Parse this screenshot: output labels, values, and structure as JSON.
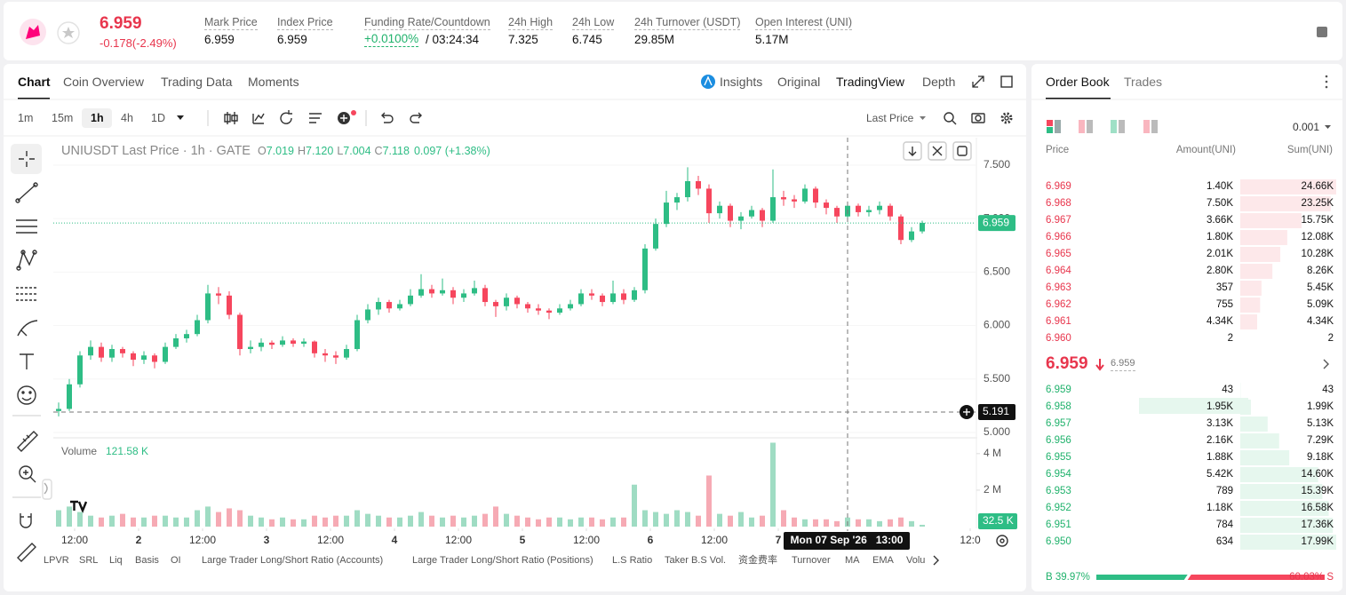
{
  "header": {
    "price": "6.959",
    "change": "-0.178(-2.49%)",
    "stats": [
      {
        "label": "Mark Price",
        "value": "6.959"
      },
      {
        "label": "Index Price",
        "value": "6.959"
      },
      {
        "label": "Funding Rate/Countdown",
        "value": "+0.0100%",
        "countdown": "/ 03:24:34"
      },
      {
        "label": "24h High",
        "value": "7.325"
      },
      {
        "label": "24h Low",
        "value": "6.745"
      },
      {
        "label": "24h Turnover (USDT)",
        "value": "29.85M"
      },
      {
        "label": "Open Interest (UNI)",
        "value": "5.17M"
      }
    ]
  },
  "chart_tabs": [
    "Chart",
    "Coin Overview",
    "Trading Data",
    "Moments"
  ],
  "view_tabs": [
    "Insights",
    "Original",
    "TradingView",
    "Depth"
  ],
  "intervals": [
    "1m",
    "15m",
    "1h",
    "4h",
    "1D"
  ],
  "price_type": "Last Price",
  "chart": {
    "type": "candlestick",
    "title": "UNIUSDT Last Price · 1h · GATE",
    "legend": [
      {
        "key": "O",
        "value": "7.019"
      },
      {
        "key": "H",
        "value": "7.120"
      },
      {
        "key": "L",
        "value": "7.004"
      },
      {
        "key": "C",
        "value": "7.118"
      }
    ],
    "legend_change": "0.097 (+1.38%)",
    "up_color": "#2ebd85",
    "down_color": "#f6465d",
    "xlim": [
      8,
      181
    ],
    "xticks": [
      {
        "value": 12,
        "label": "12:00"
      },
      {
        "value": 24,
        "label": "2"
      },
      {
        "value": 36,
        "label": "12:00"
      },
      {
        "value": 48,
        "label": "3"
      },
      {
        "value": 60,
        "label": "12:00"
      },
      {
        "value": 72,
        "label": "4"
      },
      {
        "value": 84,
        "label": "12:00"
      },
      {
        "value": 96,
        "label": "5"
      },
      {
        "value": 108,
        "label": "12:00"
      },
      {
        "value": 120,
        "label": "6"
      },
      {
        "value": 132,
        "label": "12:00"
      },
      {
        "value": 144,
        "label": "7"
      },
      {
        "value": 180,
        "label": "12:0"
      }
    ],
    "ylim": [
      4.958,
      7.757
    ],
    "yticks": [
      {
        "value": 7.5,
        "label": "7.500"
      },
      {
        "value": 7,
        "label": "7.000"
      },
      {
        "value": 6.5,
        "label": "6.500"
      },
      {
        "value": 6,
        "label": "6.000"
      },
      {
        "value": 5.5,
        "label": "5.500"
      },
      {
        "value": 5,
        "label": "5.000"
      }
    ],
    "x": [
      9,
      11,
      13,
      15,
      17,
      19,
      21,
      23,
      25,
      27,
      29,
      31,
      33,
      35,
      37,
      39,
      41,
      43,
      45,
      47,
      49,
      51,
      53,
      55,
      57,
      59,
      61,
      63,
      65,
      67,
      69,
      71,
      73,
      75,
      77,
      79,
      81,
      83,
      85,
      87,
      89,
      91,
      93,
      95,
      97,
      99,
      101,
      103,
      105,
      107,
      109,
      111,
      113,
      115,
      117,
      119,
      121,
      123,
      125,
      127,
      129,
      131,
      133,
      135,
      137,
      139,
      141,
      143,
      145,
      147,
      149,
      151,
      153,
      155,
      157,
      159,
      161,
      163,
      165,
      167,
      169,
      171
    ],
    "candles": [
      [
        5.2,
        5.28,
        5.15,
        5.22
      ],
      [
        5.22,
        5.5,
        5.2,
        5.45
      ],
      [
        5.45,
        5.76,
        5.42,
        5.72
      ],
      [
        5.72,
        5.86,
        5.68,
        5.8
      ],
      [
        5.8,
        5.84,
        5.66,
        5.7
      ],
      [
        5.7,
        5.82,
        5.66,
        5.78
      ],
      [
        5.78,
        5.8,
        5.7,
        5.74
      ],
      [
        5.74,
        5.76,
        5.62,
        5.68
      ],
      [
        5.68,
        5.76,
        5.64,
        5.72
      ],
      [
        5.72,
        5.74,
        5.6,
        5.66
      ],
      [
        5.66,
        5.84,
        5.64,
        5.8
      ],
      [
        5.8,
        5.92,
        5.78,
        5.88
      ],
      [
        5.88,
        5.96,
        5.84,
        5.92
      ],
      [
        5.92,
        6.1,
        5.9,
        6.05
      ],
      [
        6.05,
        6.38,
        6.02,
        6.3
      ],
      [
        6.3,
        6.36,
        6.2,
        6.28
      ],
      [
        6.28,
        6.32,
        6.06,
        6.1
      ],
      [
        6.1,
        6.12,
        5.72,
        5.78
      ],
      [
        5.78,
        5.86,
        5.74,
        5.8
      ],
      [
        5.8,
        5.88,
        5.76,
        5.84
      ],
      [
        5.84,
        5.86,
        5.78,
        5.82
      ],
      [
        5.82,
        5.9,
        5.8,
        5.86
      ],
      [
        5.86,
        5.88,
        5.8,
        5.83
      ],
      [
        5.83,
        5.88,
        5.8,
        5.85
      ],
      [
        5.85,
        5.86,
        5.7,
        5.74
      ],
      [
        5.74,
        5.78,
        5.66,
        5.72
      ],
      [
        5.72,
        5.76,
        5.64,
        5.7
      ],
      [
        5.7,
        5.82,
        5.68,
        5.78
      ],
      [
        5.78,
        6.1,
        5.76,
        6.05
      ],
      [
        6.05,
        6.2,
        6.02,
        6.15
      ],
      [
        6.15,
        6.26,
        6.1,
        6.22
      ],
      [
        6.22,
        6.24,
        6.12,
        6.16
      ],
      [
        6.16,
        6.24,
        6.14,
        6.2
      ],
      [
        6.2,
        6.34,
        6.18,
        6.28
      ],
      [
        6.28,
        6.48,
        6.26,
        6.34
      ],
      [
        6.34,
        6.38,
        6.26,
        6.3
      ],
      [
        6.3,
        6.44,
        6.28,
        6.33
      ],
      [
        6.33,
        6.36,
        6.2,
        6.26
      ],
      [
        6.26,
        6.34,
        6.22,
        6.3
      ],
      [
        6.3,
        6.42,
        6.28,
        6.35
      ],
      [
        6.35,
        6.38,
        6.18,
        6.22
      ],
      [
        6.22,
        6.24,
        6.08,
        6.18
      ],
      [
        6.18,
        6.3,
        6.14,
        6.26
      ],
      [
        6.26,
        6.28,
        6.16,
        6.2
      ],
      [
        6.2,
        6.22,
        6.12,
        6.16
      ],
      [
        6.16,
        6.2,
        6.1,
        6.14
      ],
      [
        6.14,
        6.16,
        6.06,
        6.12
      ],
      [
        6.12,
        6.2,
        6.1,
        6.16
      ],
      [
        6.16,
        6.24,
        6.14,
        6.2
      ],
      [
        6.2,
        6.34,
        6.18,
        6.3
      ],
      [
        6.3,
        6.34,
        6.24,
        6.28
      ],
      [
        6.28,
        6.3,
        6.18,
        6.22
      ],
      [
        6.22,
        6.42,
        6.2,
        6.3
      ],
      [
        6.3,
        6.34,
        6.2,
        6.24
      ],
      [
        6.24,
        6.36,
        6.22,
        6.33
      ],
      [
        6.33,
        6.76,
        6.3,
        6.72
      ],
      [
        6.72,
        7.0,
        6.7,
        6.95
      ],
      [
        6.95,
        7.26,
        6.92,
        7.15
      ],
      [
        7.15,
        7.24,
        7.08,
        7.2
      ],
      [
        7.2,
        7.48,
        7.16,
        7.35
      ],
      [
        7.35,
        7.4,
        7.22,
        7.28
      ],
      [
        7.28,
        7.32,
        6.96,
        7.05
      ],
      [
        7.05,
        7.16,
        7.0,
        7.12
      ],
      [
        7.12,
        7.14,
        6.92,
        6.98
      ],
      [
        6.98,
        7.06,
        6.9,
        7.02
      ],
      [
        7.02,
        7.12,
        7.0,
        7.08
      ],
      [
        7.08,
        7.1,
        6.92,
        6.98
      ],
      [
        6.98,
        7.46,
        6.96,
        7.2
      ],
      [
        7.2,
        7.26,
        7.12,
        7.18
      ],
      [
        7.18,
        7.22,
        7.1,
        7.16
      ],
      [
        7.16,
        7.32,
        7.14,
        7.28
      ],
      [
        7.28,
        7.3,
        7.1,
        7.15
      ],
      [
        7.15,
        7.18,
        7.04,
        7.1
      ],
      [
        7.1,
        7.12,
        6.96,
        7.02
      ],
      [
        7.02,
        7.16,
        7.0,
        7.12
      ],
      [
        7.12,
        7.14,
        7.02,
        7.06
      ],
      [
        7.06,
        7.12,
        7.02,
        7.08
      ],
      [
        7.08,
        7.16,
        7.04,
        7.12
      ],
      [
        7.12,
        7.14,
        6.98,
        7.02
      ],
      [
        7.02,
        7.04,
        6.76,
        6.8
      ],
      [
        6.8,
        6.92,
        6.78,
        6.88
      ],
      [
        6.88,
        6.98,
        6.86,
        6.96
      ]
    ],
    "last_price": {
      "value": 6.959,
      "label": "6.959"
    },
    "crosshair": {
      "price": {
        "value": 5.191,
        "label": "5.191"
      },
      "time": {
        "value": 157,
        "label": "Mon 07 Sep '26   13:00"
      }
    },
    "volume": {
      "title": "Volume",
      "current": "121.58 K",
      "values": [
        900000,
        1100000,
        800000,
        600000,
        500000,
        600000,
        700000,
        500000,
        500000,
        600000,
        600000,
        500000,
        500000,
        900000,
        1100000,
        800000,
        1000000,
        900000,
        600000,
        500000,
        400000,
        500000,
        400000,
        400000,
        600000,
        500000,
        600000,
        600000,
        900000,
        700000,
        600000,
        500000,
        500000,
        600000,
        800000,
        600000,
        500000,
        600000,
        500000,
        600000,
        700000,
        1100000,
        700000,
        600000,
        500000,
        400000,
        500000,
        500000,
        400000,
        500000,
        500000,
        400000,
        500000,
        500000,
        2300000,
        900000,
        800000,
        700000,
        900000,
        800000,
        600000,
        2800000,
        700000,
        600000,
        800000,
        500000,
        600000,
        4600000,
        900000,
        500000,
        400000,
        400000,
        400000,
        300000,
        500000,
        400000,
        400000,
        300000,
        400000,
        500000,
        300000,
        100000
      ],
      "ylim": [
        0,
        4770000
      ],
      "yticks": [
        {
          "value": 4000000,
          "label": "4 M"
        },
        {
          "value": 2000000,
          "label": "2 M"
        }
      ],
      "last": {
        "value": 32500,
        "label": "32.5 K"
      }
    }
  },
  "indicators": [
    "LPVR",
    "SRL",
    "Liq",
    "Basis",
    "OI",
    "Large Trader Long/Short Ratio (Accounts)",
    "Large Trader Long/Short Ratio (Positions)",
    "L.S Ratio",
    "Taker B.S Vol.",
    "资金费率",
    "Turnover",
    "MA",
    "EMA",
    "Volu"
  ],
  "order_book": {
    "tabs": [
      "Order Book",
      "Trades"
    ],
    "precision": "0.001",
    "headers": [
      "Price",
      "Amount(UNI)",
      "Sum(UNI)"
    ],
    "asks": {
      "prices": [
        "6.969",
        "6.968",
        "6.967",
        "6.966",
        "6.965",
        "6.964",
        "6.963",
        "6.962",
        "6.961",
        "6.960"
      ],
      "amounts": [
        "1.40K",
        "7.50K",
        "3.66K",
        "1.80K",
        "2.01K",
        "2.80K",
        "357",
        "755",
        "4.34K",
        "2"
      ],
      "sums": {
        "values": [
          24660,
          23250,
          15750,
          12080,
          10280,
          8260,
          5450,
          5090,
          4340,
          2
        ],
        "value_labels": [
          "24.66K",
          "23.25K",
          "15.75K",
          "12.08K",
          "10.28K",
          "8.26K",
          "5.45K",
          "5.09K",
          "4.34K",
          "2"
        ]
      }
    },
    "mid": {
      "price": "6.959",
      "index": "6.959"
    },
    "bids": {
      "prices": [
        "6.959",
        "6.958",
        "6.957",
        "6.956",
        "6.955",
        "6.954",
        "6.953",
        "6.952",
        "6.951",
        "6.950"
      ],
      "amounts": [
        "43",
        "1.95K",
        "3.13K",
        "2.16K",
        "1.88K",
        "5.42K",
        "789",
        "1.18K",
        "784",
        "634"
      ],
      "sums": {
        "values": [
          43,
          1990,
          5130,
          7290,
          9180,
          14600,
          15390,
          16580,
          17360,
          17990
        ],
        "value_labels": [
          "43",
          "1.99K",
          "5.13K",
          "7.29K",
          "9.18K",
          "14.60K",
          "15.39K",
          "16.58K",
          "17.36K",
          "17.99K"
        ]
      }
    },
    "ratio": {
      "buy": {
        "value": 39.97,
        "label": "B 39.97%"
      },
      "sell": {
        "value": 60.03,
        "label": "60.03% S"
      }
    }
  }
}
